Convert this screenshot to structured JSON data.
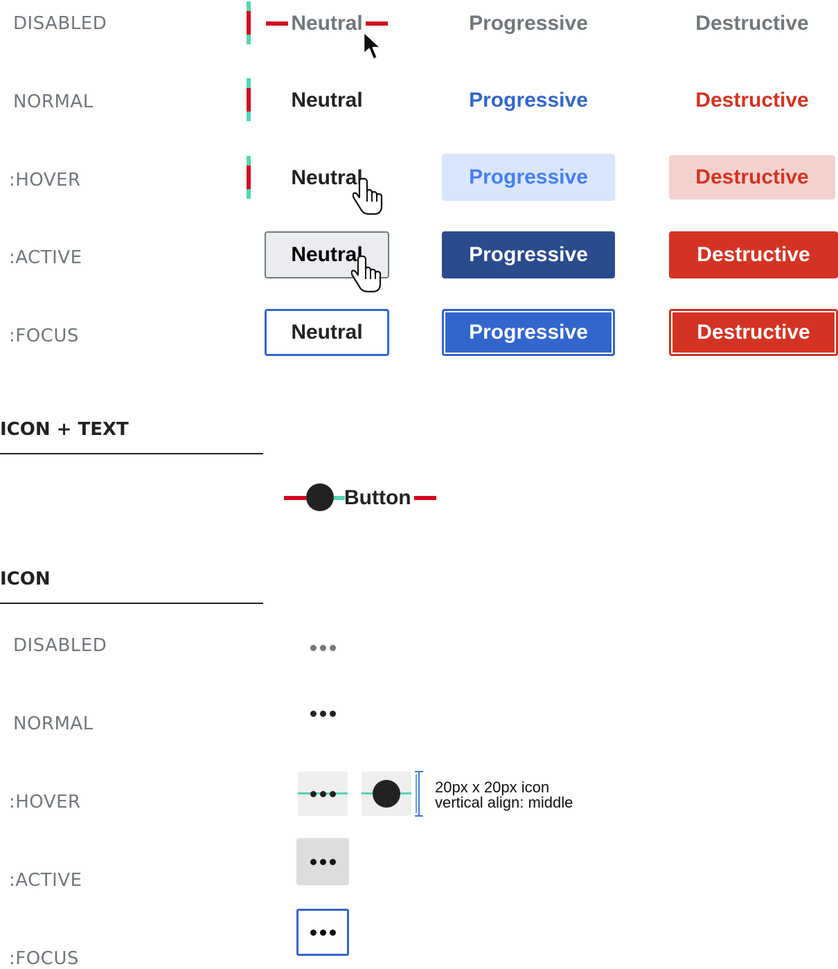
{
  "states": {
    "disabled": "DISABLED",
    "normal": "NORMAL",
    "hover": ":HOVER",
    "active": ":ACTIVE",
    "focus": ":FOCUS"
  },
  "buttons": {
    "neutral": "Neutral",
    "progressive": "Progressive",
    "destructive": "Destructive"
  },
  "sections": {
    "icon_text": "ICON + TEXT",
    "icon": "ICON"
  },
  "icon_text_button": "Button",
  "annotation": {
    "line1": "20px x 20px icon",
    "line2": "vertical align: middle"
  },
  "colors": {
    "neutral_text": "#222222",
    "disabled_text": "#72777d",
    "progressive": "#3366cc",
    "progressive_hover_bg": "#dae6fc",
    "progressive_active": "#2a4b8d",
    "destructive": "#d33323",
    "destructive_hover_bg": "#f6d2cf",
    "padding_marker": "#d00820",
    "spacing_marker": "#54d5b3"
  }
}
